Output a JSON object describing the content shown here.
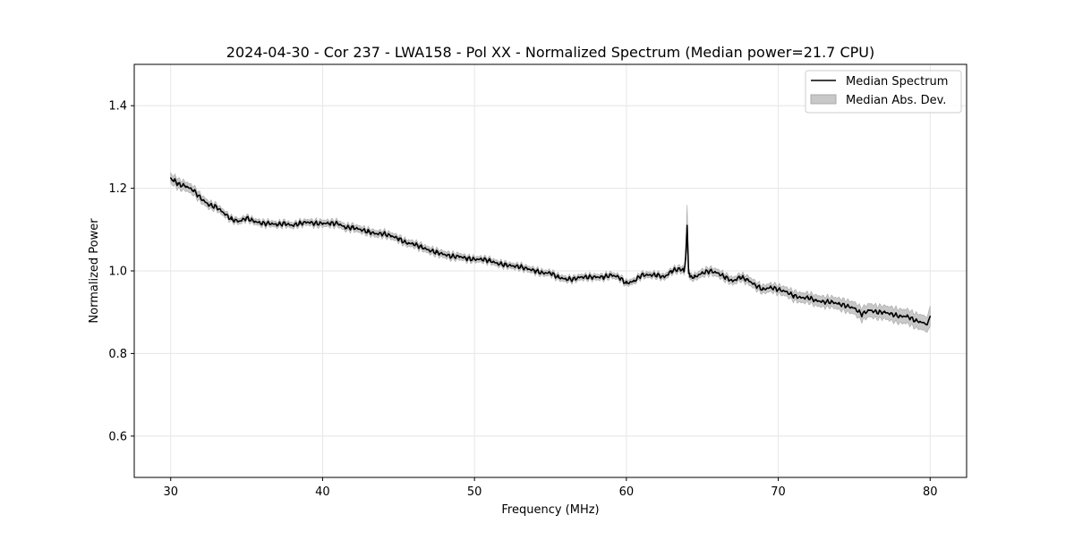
{
  "chart_data": {
    "type": "line",
    "title": "2024-04-30 - Cor 237 - LWA158 - Pol XX - Normalized Spectrum (Median power=21.7 CPU)",
    "xlabel": "Frequency (MHz)",
    "ylabel": "Normalized Power",
    "xlim": [
      27.6,
      82.4
    ],
    "ylim": [
      0.5,
      1.5
    ],
    "x_ticks": [
      30,
      40,
      50,
      60,
      70,
      80
    ],
    "x_tick_labels": [
      "30",
      "40",
      "50",
      "60",
      "70",
      "80"
    ],
    "y_ticks": [
      0.6,
      0.8,
      1.0,
      1.2,
      1.4
    ],
    "y_tick_labels": [
      "0.6",
      "0.8",
      "1.0",
      "1.2",
      "1.4"
    ],
    "grid": true,
    "legend_position": "top-right",
    "legend": [
      "Median Spectrum",
      "Median Abs. Dev."
    ],
    "colors": {
      "line": "#000000",
      "band": "#c8c8c8",
      "band_edge": "#a8a8a8",
      "grid": "#e6e6e6",
      "axes": "#000000"
    },
    "series": [
      {
        "name": "Median Spectrum",
        "band_name": "Median Abs. Dev.",
        "x": [
          30.0,
          30.2,
          30.5,
          31.0,
          31.5,
          32.0,
          32.5,
          33.0,
          33.5,
          34.0,
          34.5,
          35.0,
          35.5,
          36.0,
          36.5,
          37.0,
          37.5,
          38.0,
          38.5,
          39.0,
          39.5,
          40.0,
          40.5,
          41.0,
          41.5,
          42.0,
          42.5,
          43.0,
          43.5,
          44.0,
          44.5,
          45.0,
          45.5,
          46.0,
          46.5,
          47.0,
          47.5,
          48.0,
          48.5,
          49.0,
          49.5,
          50.0,
          50.5,
          51.0,
          51.5,
          52.0,
          52.5,
          53.0,
          53.5,
          54.0,
          54.5,
          55.0,
          55.5,
          56.0,
          56.5,
          57.0,
          57.5,
          58.0,
          58.5,
          59.0,
          59.5,
          60.0,
          60.5,
          61.0,
          61.5,
          62.0,
          62.5,
          63.0,
          63.5,
          63.8,
          63.9,
          64.0,
          64.1,
          64.2,
          64.5,
          65.0,
          65.5,
          66.0,
          66.5,
          67.0,
          67.5,
          68.0,
          68.5,
          69.0,
          69.5,
          70.0,
          70.5,
          71.0,
          71.5,
          72.0,
          72.5,
          73.0,
          73.5,
          74.0,
          74.5,
          75.0,
          75.5,
          76.0,
          76.5,
          77.0,
          77.5,
          78.0,
          78.5,
          79.0,
          79.5,
          79.8,
          80.0
        ],
        "y": [
          1.225,
          1.22,
          1.21,
          1.205,
          1.195,
          1.175,
          1.16,
          1.155,
          1.14,
          1.125,
          1.12,
          1.128,
          1.12,
          1.115,
          1.115,
          1.112,
          1.115,
          1.11,
          1.115,
          1.118,
          1.115,
          1.115,
          1.115,
          1.115,
          1.105,
          1.105,
          1.1,
          1.095,
          1.09,
          1.09,
          1.085,
          1.078,
          1.068,
          1.065,
          1.058,
          1.05,
          1.045,
          1.04,
          1.035,
          1.035,
          1.03,
          1.028,
          1.028,
          1.025,
          1.018,
          1.015,
          1.012,
          1.01,
          1.005,
          1.0,
          0.995,
          0.995,
          0.985,
          0.98,
          0.98,
          0.985,
          0.985,
          0.985,
          0.985,
          0.99,
          0.985,
          0.97,
          0.975,
          0.99,
          0.99,
          0.99,
          0.985,
          1.0,
          1.005,
          1.0,
          1.03,
          1.11,
          1.0,
          0.985,
          0.985,
          0.995,
          1.0,
          0.995,
          0.985,
          0.975,
          0.985,
          0.978,
          0.965,
          0.955,
          0.96,
          0.955,
          0.95,
          0.94,
          0.935,
          0.935,
          0.928,
          0.925,
          0.925,
          0.92,
          0.915,
          0.91,
          0.895,
          0.905,
          0.9,
          0.9,
          0.895,
          0.89,
          0.89,
          0.88,
          0.875,
          0.87,
          0.89
        ],
        "mad": [
          0.012,
          0.012,
          0.012,
          0.011,
          0.011,
          0.01,
          0.009,
          0.008,
          0.008,
          0.007,
          0.007,
          0.007,
          0.007,
          0.007,
          0.007,
          0.007,
          0.007,
          0.007,
          0.007,
          0.007,
          0.008,
          0.008,
          0.008,
          0.008,
          0.008,
          0.008,
          0.008,
          0.008,
          0.008,
          0.008,
          0.008,
          0.008,
          0.008,
          0.008,
          0.008,
          0.008,
          0.008,
          0.008,
          0.008,
          0.008,
          0.007,
          0.007,
          0.007,
          0.007,
          0.007,
          0.007,
          0.007,
          0.007,
          0.007,
          0.007,
          0.007,
          0.007,
          0.007,
          0.007,
          0.007,
          0.007,
          0.007,
          0.007,
          0.007,
          0.007,
          0.007,
          0.007,
          0.007,
          0.007,
          0.007,
          0.007,
          0.007,
          0.007,
          0.008,
          0.008,
          0.012,
          0.05,
          0.01,
          0.008,
          0.008,
          0.009,
          0.009,
          0.009,
          0.009,
          0.009,
          0.009,
          0.01,
          0.01,
          0.01,
          0.01,
          0.011,
          0.011,
          0.012,
          0.012,
          0.012,
          0.013,
          0.013,
          0.013,
          0.014,
          0.014,
          0.015,
          0.016,
          0.016,
          0.016,
          0.016,
          0.017,
          0.017,
          0.017,
          0.018,
          0.018,
          0.018,
          0.025
        ]
      }
    ]
  }
}
